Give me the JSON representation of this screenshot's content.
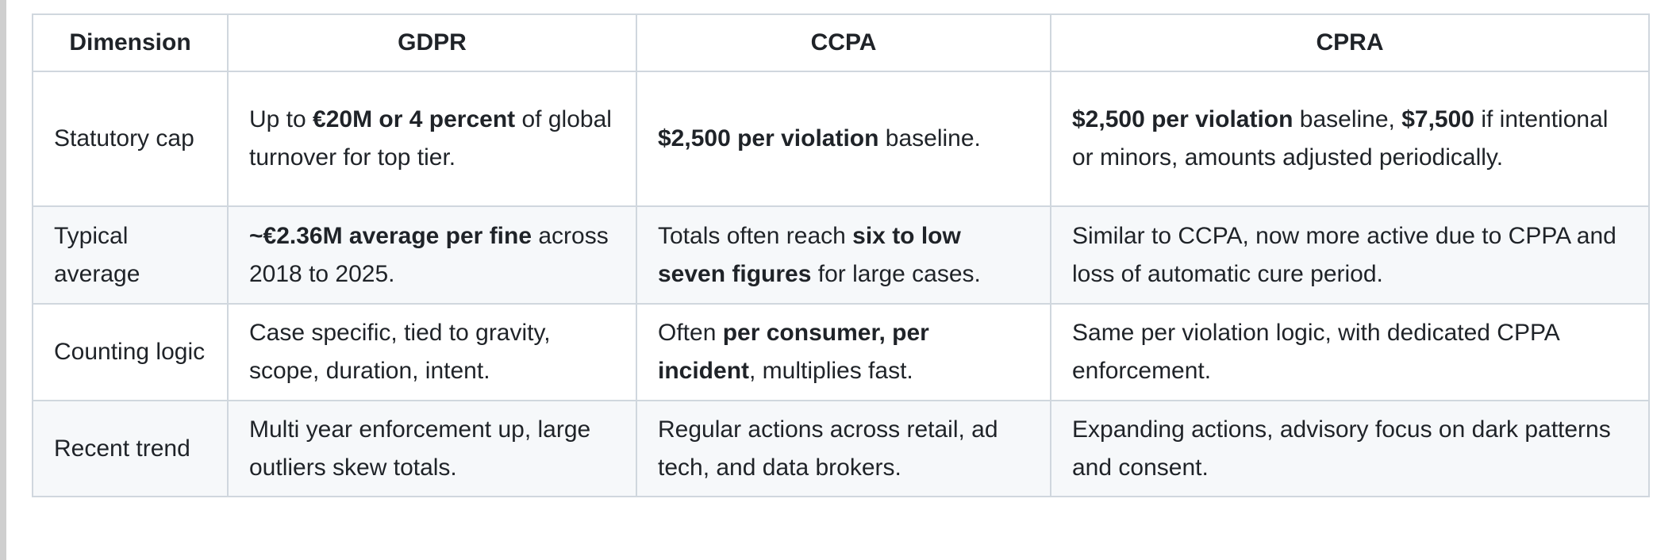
{
  "table": {
    "headers": [
      "Dimension",
      "GDPR",
      "CCPA",
      "CPRA"
    ],
    "rows": [
      {
        "dimension": "Statutory cap",
        "cells": [
          [
            {
              "t": "Up to "
            },
            {
              "t": "€20M or 4 percent",
              "b": true
            },
            {
              "t": " of global turnover for top tier."
            }
          ],
          [
            {
              "t": "$2,500 per violation",
              "b": true
            },
            {
              "t": " baseline."
            }
          ],
          [
            {
              "t": "$2,500 per violation",
              "b": true
            },
            {
              "t": " baseline, "
            },
            {
              "t": "$7,500",
              "b": true
            },
            {
              "t": " if intentional or minors, amounts adjusted periodically."
            }
          ]
        ]
      },
      {
        "dimension": "Typical average",
        "cells": [
          [
            {
              "t": "~€2.36M average per fine",
              "b": true
            },
            {
              "t": " across 2018 to 2025."
            }
          ],
          [
            {
              "t": "Totals often reach "
            },
            {
              "t": "six to low seven figures",
              "b": true
            },
            {
              "t": " for large cases."
            }
          ],
          [
            {
              "t": "Similar to CCPA, now more active due to CPPA and loss of automatic cure period."
            }
          ]
        ]
      },
      {
        "dimension": "Counting logic",
        "cells": [
          [
            {
              "t": "Case specific, tied to gravity, scope, duration, intent."
            }
          ],
          [
            {
              "t": "Often "
            },
            {
              "t": "per consumer, per incident",
              "b": true
            },
            {
              "t": ", multiplies fast."
            }
          ],
          [
            {
              "t": "Same per violation logic, with dedicated CPPA enforcement."
            }
          ]
        ]
      },
      {
        "dimension": "Recent trend",
        "cells": [
          [
            {
              "t": "Multi year enforcement up, large outliers skew totals."
            }
          ],
          [
            {
              "t": "Regular actions across retail, ad tech, and data brokers."
            }
          ],
          [
            {
              "t": "Expanding actions, advisory focus on dark patterns and consent."
            }
          ]
        ]
      }
    ]
  }
}
